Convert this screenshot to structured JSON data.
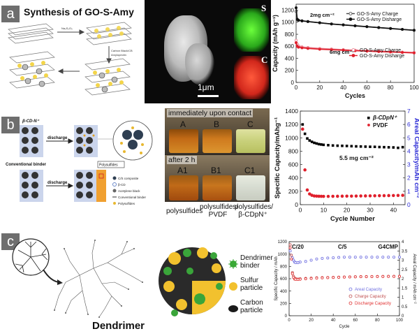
{
  "panels": {
    "a": {
      "tag": "a",
      "title": "Synthesis of GO-S-Amy",
      "scheme_labels": {
        "step1": "Na₂S₂O₃",
        "step2a": "Carbon Black/CB",
        "step2b": "Amylopectin"
      },
      "tem": {
        "scale": "1μm",
        "map1": "S",
        "map2": "C"
      }
    },
    "b": {
      "tag": "b",
      "scheme_labels": {
        "cd_binder": "β-CD-N⁺",
        "conventional": "Conventional binder",
        "discharge1": "discharge",
        "discharge2": "discharge",
        "polysulfides_label": "Polysulfides",
        "legend": [
          "C/S composite",
          "β-CD",
          "Acetylene black",
          "Conventional binder",
          "Polysulfides"
        ]
      },
      "photo": {
        "top_caption": "immediately upon contact",
        "bottom_caption": "after 2 h",
        "top_labels": [
          "A",
          "B",
          "C"
        ],
        "bottom_labels": [
          "A1",
          "B1",
          "C1"
        ],
        "under_labels": [
          "polysulfides",
          "polysulfides/\nPVDF",
          "polysulfides/\nβ-CDpN⁺"
        ]
      }
    },
    "c": {
      "tag": "c",
      "labels": {
        "dendrimer": "Dendrimer"
      },
      "legend": [
        {
          "label": "Dendrimer binder",
          "color": "#39a935"
        },
        {
          "label": "Sulfur particle",
          "color": "#f2c12e"
        },
        {
          "label": "Carbon particle",
          "color": "#1a1a1a"
        }
      ]
    }
  },
  "chart_data": [
    {
      "id": "chart-a",
      "type": "line",
      "xlabel": "Cycles",
      "ylabel": "Capacity (mAh g⁻¹)",
      "xlim": [
        0,
        100
      ],
      "ylim": [
        0,
        1300
      ],
      "xticks": [
        0,
        20,
        40,
        60,
        80,
        100
      ],
      "yticks": [
        0,
        200,
        400,
        600,
        800,
        1000,
        1200
      ],
      "annotations": [
        "2mg cm⁻²",
        "6mg cm⁻²"
      ],
      "legend_groups": [
        [
          "GO-S-Amy Charge",
          "GO-S-Amy Disharge"
        ],
        [
          "GO-S-Amy Charge",
          "GO-S-Amy Disharge"
        ]
      ],
      "series": [
        {
          "name": "GO-S-Amy Charge",
          "color": "#444444",
          "open": true,
          "x": [
            0,
            1,
            2,
            5,
            10,
            20,
            30,
            40,
            50,
            60,
            70,
            80,
            90,
            100
          ],
          "y": [
            1180,
            1040,
            1030,
            1020,
            1010,
            990,
            970,
            955,
            940,
            925,
            910,
            895,
            880,
            865
          ]
        },
        {
          "name": "GO-S-Amy Disharge",
          "color": "#111111",
          "open": false,
          "x": [
            0,
            1,
            2,
            5,
            10,
            20,
            30,
            40,
            50,
            60,
            70,
            80,
            90,
            100
          ],
          "y": [
            1240,
            1050,
            1035,
            1025,
            1012,
            992,
            972,
            957,
            942,
            927,
            912,
            897,
            882,
            867
          ]
        },
        {
          "name": "GO-S-Amy Charge",
          "color": "#e87a8a",
          "open": true,
          "x": [
            0,
            1,
            2,
            5,
            10,
            20,
            30,
            40,
            50,
            60,
            70,
            80,
            90,
            100
          ],
          "y": [
            700,
            640,
            610,
            590,
            580,
            565,
            555,
            545,
            535,
            528,
            520,
            512,
            505,
            498
          ]
        },
        {
          "name": "GO-S-Amy Disharge",
          "color": "#e0202c",
          "open": false,
          "x": [
            0,
            1,
            2,
            5,
            10,
            20,
            30,
            40,
            50,
            60,
            70,
            80,
            90,
            100
          ],
          "y": [
            660,
            600,
            585,
            575,
            565,
            552,
            543,
            535,
            527,
            520,
            512,
            505,
            498,
            490
          ]
        }
      ]
    },
    {
      "id": "chart-b",
      "type": "scatter",
      "xlabel": "Cycle Number",
      "ylabel": "Specific Capacity/mAhg⁻¹",
      "ylabel_right": "Areal Capacity/mAh cm⁻²",
      "xlim": [
        0,
        45
      ],
      "ylim": [
        0,
        1400
      ],
      "ylim_right": [
        0,
        7
      ],
      "xticks": [
        0,
        10,
        20,
        30,
        40
      ],
      "yticks": [
        0,
        200,
        400,
        600,
        800,
        1000,
        1200,
        1400
      ],
      "yticks_right": [
        0,
        1,
        2,
        3,
        4,
        5,
        6,
        7
      ],
      "annotation": "5.5 mg cm⁻²",
      "legend": [
        "β-CDpN⁺",
        "PVDF"
      ],
      "series": [
        {
          "name": "β-CDpN⁺",
          "color": "#000000",
          "x": [
            1,
            2,
            3,
            4,
            5,
            6,
            7,
            8,
            9,
            10,
            12,
            14,
            16,
            18,
            20,
            22,
            24,
            26,
            28,
            30,
            32,
            34,
            36,
            38,
            40,
            42,
            44
          ],
          "y": [
            1200,
            1060,
            990,
            960,
            940,
            925,
            915,
            905,
            900,
            895,
            890,
            885,
            882,
            880,
            878,
            875,
            872,
            870,
            868,
            866,
            865,
            862,
            860,
            858,
            856,
            850,
            860
          ]
        },
        {
          "name": "PVDF",
          "color": "#e0202c",
          "x": [
            1,
            2,
            3,
            4,
            5,
            6,
            7,
            8,
            9,
            10,
            12,
            14,
            16,
            18,
            20,
            22,
            24,
            26,
            28,
            30,
            32,
            34,
            36,
            38,
            40,
            42,
            44
          ],
          "y": [
            1130,
            520,
            220,
            160,
            140,
            130,
            128,
            126,
            125,
            124,
            124,
            125,
            126,
            127,
            128,
            128,
            129,
            130,
            131,
            132,
            133,
            134,
            135,
            136,
            137,
            138,
            140
          ]
        }
      ]
    },
    {
      "id": "chart-c",
      "type": "scatter",
      "title": "G4CMP",
      "xlabel": "Cycle",
      "ylabel": "Specific Capacity / mAh",
      "ylabel_right": "Areal Capacity / mAh cm⁻²",
      "xlim": [
        0,
        100
      ],
      "ylim": [
        0,
        1200
      ],
      "ylim_right": [
        0,
        4
      ],
      "xticks": [
        0,
        20,
        40,
        60,
        80,
        100
      ],
      "yticks": [
        0,
        200,
        400,
        600,
        800,
        1000,
        1200
      ],
      "yticks_right": [
        0,
        0.5,
        1,
        1.5,
        2,
        2.5,
        3,
        3.5,
        4
      ],
      "annotations": [
        "C/20",
        "C/5"
      ],
      "legend": [
        "Areal Capacity",
        "Charge Capacity",
        "Discharge Capacity"
      ],
      "series": [
        {
          "name": "Areal Capacity",
          "color": "#6f6fe0",
          "x": [
            1,
            2,
            3,
            4,
            5,
            6,
            8,
            10,
            15,
            20,
            25,
            30,
            35,
            40,
            45,
            50,
            55,
            60,
            65,
            70,
            75,
            80,
            85,
            90,
            95,
            100
          ],
          "y": [
            1050,
            980,
            940,
            900,
            870,
            860,
            860,
            870,
            880,
            900,
            920,
            930,
            935,
            940,
            945,
            950,
            950,
            950,
            950,
            950,
            950,
            950,
            950,
            950,
            950,
            950
          ]
        },
        {
          "name": "Charge Capacity",
          "color": "#c05050",
          "x": [
            1,
            2,
            3,
            4,
            5,
            6,
            8,
            10,
            15,
            20,
            25,
            30,
            35,
            40,
            45,
            50,
            55,
            60,
            65,
            70,
            75,
            80,
            85,
            90,
            95,
            100
          ],
          "y": [
            1150,
            980,
            700,
            640,
            610,
            600,
            595,
            600,
            605,
            610,
            615,
            618,
            620,
            622,
            625,
            628,
            630,
            632,
            634,
            635,
            636,
            637,
            638,
            640,
            640,
            640
          ]
        },
        {
          "name": "Discharge Capacity",
          "color": "#e03030",
          "x": [
            1,
            2,
            3,
            4,
            5,
            6,
            8,
            10,
            15,
            20,
            25,
            30,
            35,
            40,
            45,
            50,
            55,
            60,
            65,
            70,
            75,
            80,
            85,
            90,
            95,
            100
          ],
          "y": [
            1100,
            920,
            680,
            620,
            595,
            590,
            588,
            592,
            598,
            604,
            610,
            614,
            617,
            620,
            623,
            626,
            628,
            630,
            632,
            633,
            634,
            635,
            636,
            637,
            637,
            637
          ]
        }
      ]
    }
  ]
}
